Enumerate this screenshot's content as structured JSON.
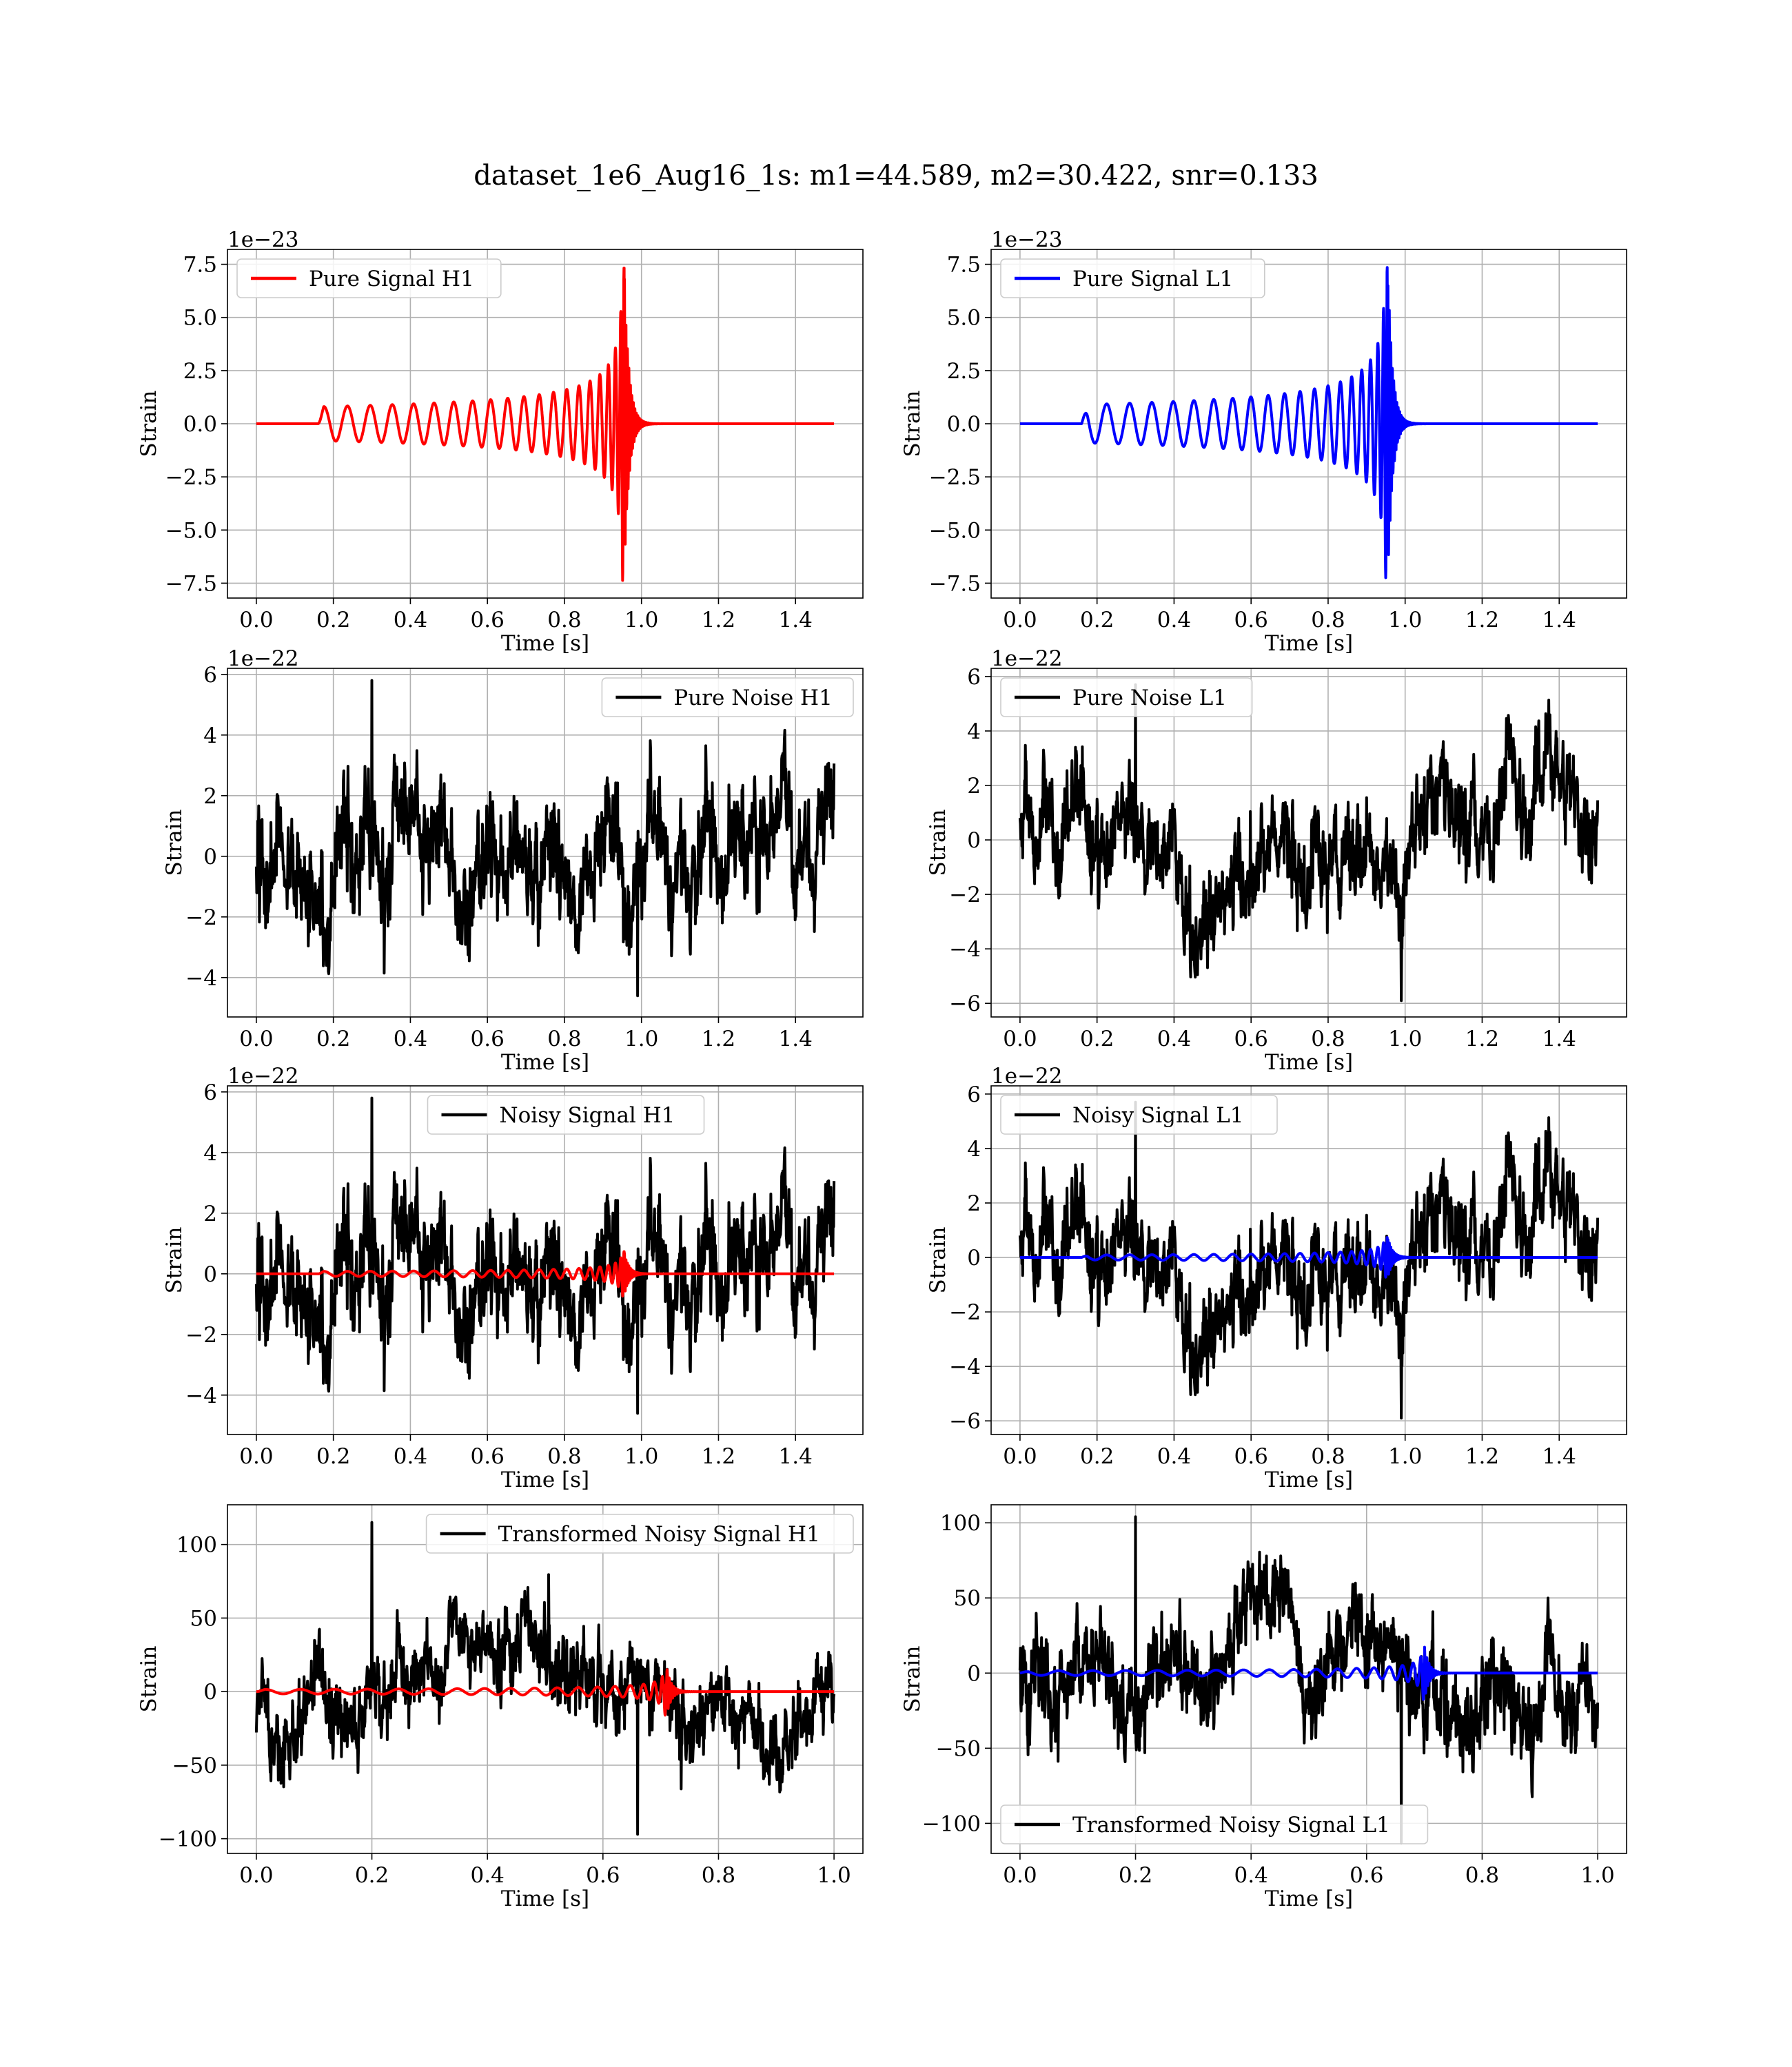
{
  "figure": {
    "title": "dataset_1e6_Aug16_1s: m1=44.589, m2=30.422, snr=0.133"
  },
  "chart_data": [
    {
      "id": "pure-signal-h1",
      "type": "line",
      "xlabel": "Time [s]",
      "ylabel": "Strain",
      "offset_text": "1e−23",
      "xlim": [
        -0.075,
        1.575
      ],
      "ylim": [
        -8.2,
        8.2
      ],
      "xticks": [
        0.0,
        0.2,
        0.4,
        0.6,
        0.8,
        1.0,
        1.2,
        1.4
      ],
      "xtick_labels": [
        "0.0",
        "0.2",
        "0.4",
        "0.6",
        "0.8",
        "1.0",
        "1.2",
        "1.4"
      ],
      "yticks": [
        -7.5,
        -5.0,
        -2.5,
        0.0,
        2.5,
        5.0,
        7.5
      ],
      "ytick_labels": [
        "−7.5",
        "−5.0",
        "−2.5",
        "0.0",
        "2.5",
        "5.0",
        "7.5"
      ],
      "grid": true,
      "legend_position": "upper-left",
      "series": [
        {
          "name": "Pure Signal H1",
          "color": "#ff0000",
          "kind": "chirp",
          "x_range": [
            0,
            1.5
          ],
          "start": 0.16,
          "merger": 0.955,
          "peak": 7.4,
          "early_amp": 0.8,
          "ringdown": 0.012,
          "phase": 0.0,
          "seed": 11
        }
      ]
    },
    {
      "id": "pure-signal-l1",
      "type": "line",
      "xlabel": "Time [s]",
      "ylabel": "Strain",
      "offset_text": "1e−23",
      "xlim": [
        -0.075,
        1.575
      ],
      "ylim": [
        -8.2,
        8.2
      ],
      "xticks": [
        0.0,
        0.2,
        0.4,
        0.6,
        0.8,
        1.0,
        1.2,
        1.4
      ],
      "xtick_labels": [
        "0.0",
        "0.2",
        "0.4",
        "0.6",
        "0.8",
        "1.0",
        "1.2",
        "1.4"
      ],
      "yticks": [
        -7.5,
        -5.0,
        -2.5,
        0.0,
        2.5,
        5.0,
        7.5
      ],
      "ytick_labels": [
        "−7.5",
        "−5.0",
        "−2.5",
        "0.0",
        "2.5",
        "5.0",
        "7.5"
      ],
      "grid": true,
      "legend_position": "upper-left",
      "series": [
        {
          "name": "Pure Signal L1",
          "color": "#0000ff",
          "kind": "chirp",
          "x_range": [
            0,
            1.5
          ],
          "start": 0.16,
          "merger": 0.955,
          "peak": 7.5,
          "early_amp": 0.9,
          "ringdown": 0.012,
          "phase": 1.2,
          "seed": 12
        }
      ]
    },
    {
      "id": "pure-noise-h1",
      "type": "line",
      "xlabel": "Time [s]",
      "ylabel": "Strain",
      "offset_text": "1e−22",
      "xlim": [
        -0.075,
        1.575
      ],
      "ylim": [
        -5.3,
        6.2
      ],
      "xticks": [
        0.0,
        0.2,
        0.4,
        0.6,
        0.8,
        1.0,
        1.2,
        1.4
      ],
      "xtick_labels": [
        "0.0",
        "0.2",
        "0.4",
        "0.6",
        "0.8",
        "1.0",
        "1.2",
        "1.4"
      ],
      "yticks": [
        -4,
        -2,
        0,
        2,
        4,
        6
      ],
      "ytick_labels": [
        "−4",
        "−2",
        "0",
        "2",
        "4",
        "6"
      ],
      "grid": true,
      "legend_position": "upper-right",
      "series": [
        {
          "name": "Pure Noise H1",
          "color": "#000000",
          "kind": "noise",
          "x_range": [
            0,
            1.5
          ],
          "sigma": 1.35,
          "max": 5.8,
          "min": -4.6,
          "seed": 21
        }
      ]
    },
    {
      "id": "pure-noise-l1",
      "type": "line",
      "xlabel": "Time [s]",
      "ylabel": "Strain",
      "offset_text": "1e−22",
      "xlim": [
        -0.075,
        1.575
      ],
      "ylim": [
        -6.5,
        6.3
      ],
      "xticks": [
        0.0,
        0.2,
        0.4,
        0.6,
        0.8,
        1.0,
        1.2,
        1.4
      ],
      "xtick_labels": [
        "0.0",
        "0.2",
        "0.4",
        "0.6",
        "0.8",
        "1.0",
        "1.2",
        "1.4"
      ],
      "yticks": [
        -6,
        -4,
        -2,
        0,
        2,
        4,
        6
      ],
      "ytick_labels": [
        "−6",
        "−4",
        "−2",
        "0",
        "2",
        "4",
        "6"
      ],
      "grid": true,
      "legend_position": "upper-left",
      "series": [
        {
          "name": "Pure Noise L1",
          "color": "#000000",
          "kind": "noise",
          "x_range": [
            0,
            1.5
          ],
          "sigma": 1.7,
          "max": 5.7,
          "min": -5.9,
          "seed": 22
        }
      ]
    },
    {
      "id": "noisy-signal-h1",
      "type": "line",
      "xlabel": "Time [s]",
      "ylabel": "Strain",
      "offset_text": "1e−22",
      "xlim": [
        -0.075,
        1.575
      ],
      "ylim": [
        -5.3,
        6.2
      ],
      "xticks": [
        0.0,
        0.2,
        0.4,
        0.6,
        0.8,
        1.0,
        1.2,
        1.4
      ],
      "xtick_labels": [
        "0.0",
        "0.2",
        "0.4",
        "0.6",
        "0.8",
        "1.0",
        "1.2",
        "1.4"
      ],
      "yticks": [
        -4,
        -2,
        0,
        2,
        4,
        6
      ],
      "ytick_labels": [
        "−4",
        "−2",
        "0",
        "2",
        "4",
        "6"
      ],
      "grid": true,
      "legend_position": "upper-center",
      "series": [
        {
          "name": "Noisy Signal H1",
          "color": "#000000",
          "kind": "noise",
          "x_range": [
            0,
            1.5
          ],
          "sigma": 1.35,
          "max": 5.8,
          "min": -4.6,
          "seed": 21
        },
        {
          "name": "",
          "color": "#ff0000",
          "kind": "chirp",
          "x_range": [
            0,
            1.5
          ],
          "start": 0.16,
          "merger": 0.955,
          "peak": 0.74,
          "early_amp": 0.08,
          "ringdown": 0.012,
          "phase": 0.0,
          "seed": 11
        }
      ]
    },
    {
      "id": "noisy-signal-l1",
      "type": "line",
      "xlabel": "Time [s]",
      "ylabel": "Strain",
      "offset_text": "1e−22",
      "xlim": [
        -0.075,
        1.575
      ],
      "ylim": [
        -6.5,
        6.3
      ],
      "xticks": [
        0.0,
        0.2,
        0.4,
        0.6,
        0.8,
        1.0,
        1.2,
        1.4
      ],
      "xtick_labels": [
        "0.0",
        "0.2",
        "0.4",
        "0.6",
        "0.8",
        "1.0",
        "1.2",
        "1.4"
      ],
      "yticks": [
        -6,
        -4,
        -2,
        0,
        2,
        4,
        6
      ],
      "ytick_labels": [
        "−6",
        "−4",
        "−2",
        "0",
        "2",
        "4",
        "6"
      ],
      "grid": true,
      "legend_position": "upper-left",
      "series": [
        {
          "name": "Noisy Signal L1",
          "color": "#000000",
          "kind": "noise",
          "x_range": [
            0,
            1.5
          ],
          "sigma": 1.7,
          "max": 5.7,
          "min": -5.9,
          "seed": 22
        },
        {
          "name": "",
          "color": "#0000ff",
          "kind": "chirp",
          "x_range": [
            0,
            1.5
          ],
          "start": 0.16,
          "merger": 0.955,
          "peak": 0.75,
          "early_amp": 0.09,
          "ringdown": 0.012,
          "phase": 1.2,
          "seed": 12
        }
      ]
    },
    {
      "id": "transformed-noisy-signal-h1",
      "type": "line",
      "xlabel": "Time [s]",
      "ylabel": "Strain",
      "offset_text": "",
      "xlim": [
        -0.05,
        1.05
      ],
      "ylim": [
        -110,
        127
      ],
      "xticks": [
        0.0,
        0.2,
        0.4,
        0.6,
        0.8,
        1.0
      ],
      "xtick_labels": [
        "0.0",
        "0.2",
        "0.4",
        "0.6",
        "0.8",
        "1.0"
      ],
      "yticks": [
        -100,
        -50,
        0,
        50,
        100
      ],
      "ytick_labels": [
        "−100",
        "−50",
        "0",
        "50",
        "100"
      ],
      "grid": true,
      "legend_position": "upper-right",
      "series": [
        {
          "name": "Transformed Noisy Signal H1",
          "color": "#000000",
          "kind": "noise",
          "x_range": [
            0,
            1.0
          ],
          "sigma": 26,
          "max": 115,
          "min": -97,
          "seed": 31
        },
        {
          "name": "",
          "color": "#ff0000",
          "kind": "chirp",
          "x_range": [
            0,
            1.0
          ],
          "start": 0.0,
          "merger": 0.71,
          "peak": 17,
          "early_amp": 1.5,
          "ringdown": 0.008,
          "phase": 0.0,
          "seed": 13
        }
      ]
    },
    {
      "id": "transformed-noisy-signal-l1",
      "type": "line",
      "xlabel": "Time [s]",
      "ylabel": "Strain",
      "offset_text": "",
      "xlim": [
        -0.05,
        1.05
      ],
      "ylim": [
        -120,
        112
      ],
      "xticks": [
        0.0,
        0.2,
        0.4,
        0.6,
        0.8,
        1.0
      ],
      "xtick_labels": [
        "0.0",
        "0.2",
        "0.4",
        "0.6",
        "0.8",
        "1.0"
      ],
      "yticks": [
        -100,
        -50,
        0,
        50,
        100
      ],
      "ytick_labels": [
        "−100",
        "−50",
        "0",
        "50",
        "100"
      ],
      "grid": true,
      "legend_position": "lower-left",
      "series": [
        {
          "name": "Transformed Noisy Signal L1",
          "color": "#000000",
          "kind": "noise",
          "x_range": [
            0,
            1.0
          ],
          "sigma": 28,
          "max": 104,
          "min": -113,
          "seed": 32
        },
        {
          "name": "",
          "color": "#0000ff",
          "kind": "chirp",
          "x_range": [
            0,
            1.0
          ],
          "start": 0.0,
          "merger": 0.7,
          "peak": 18,
          "early_amp": 1.5,
          "ringdown": 0.008,
          "phase": 1.0,
          "seed": 14
        }
      ]
    }
  ]
}
